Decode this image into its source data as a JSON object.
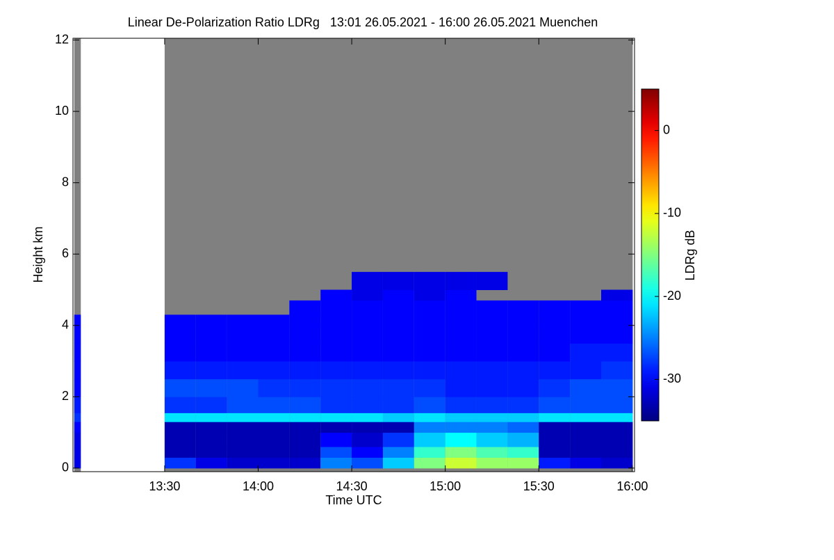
{
  "chart_data": {
    "type": "heatmap",
    "title": "Linear De-Polarization Ratio LDRg   13:01 26.05.2021 - 16:00 26.05.2021 Muenchen",
    "x_label": "Time UTC",
    "y_label": "Height km",
    "colorbar_label": "LDRg dB",
    "xlim": [
      780.6,
      960.7
    ],
    "xticks": [
      {
        "value": 810,
        "label": "13:30"
      },
      {
        "value": 840,
        "label": "14:00"
      },
      {
        "value": 870,
        "label": "14:30"
      },
      {
        "value": 900,
        "label": "15:00"
      },
      {
        "value": 930,
        "label": "15:30"
      },
      {
        "value": 960,
        "label": "16:00"
      }
    ],
    "ylim": [
      -0.1,
      12.05
    ],
    "yticks": [
      0,
      2,
      4,
      6,
      8,
      10,
      12
    ],
    "clim": [
      -35,
      5
    ],
    "cticks": [
      0,
      -10,
      -20,
      -30
    ],
    "colormap": "jet",
    "no_signal_color": "#808080",
    "y_edges": [
      0,
      0.3,
      0.6,
      1.0,
      1.3,
      1.55,
      2.0,
      2.5,
      3.0,
      3.5,
      4.0,
      4.3,
      4.7,
      5.0,
      5.5,
      6.0
    ],
    "columns": [
      {
        "x0": 781,
        "x1": 783,
        "z": [
          -31,
          -31,
          -31,
          -30,
          -28,
          -29,
          -30,
          -30,
          -30,
          -30,
          -30,
          null,
          null,
          null,
          null
        ]
      },
      {
        "x0": 810,
        "x1": 820,
        "z": [
          -28,
          -33,
          -33,
          -33,
          -21,
          -28,
          -27,
          -29,
          -30,
          -30,
          -30,
          null,
          null,
          null,
          null
        ]
      },
      {
        "x0": 820,
        "x1": 830,
        "z": [
          -31,
          -33,
          -33,
          -33,
          -21,
          -28,
          -27,
          -29,
          -30,
          -30,
          -30,
          null,
          null,
          null,
          null
        ]
      },
      {
        "x0": 830,
        "x1": 840,
        "z": [
          -32,
          -33,
          -33,
          -33,
          -21,
          -27,
          -27,
          -29,
          -30,
          -30,
          -30,
          null,
          null,
          null,
          null
        ]
      },
      {
        "x0": 840,
        "x1": 850,
        "z": [
          -32,
          -33,
          -33,
          -33,
          -21,
          -27,
          -28,
          -29,
          -30,
          -30,
          -30,
          null,
          null,
          null,
          null
        ]
      },
      {
        "x0": 850,
        "x1": 860,
        "z": [
          -32,
          -33,
          -33,
          -33,
          -21,
          -27,
          -28,
          -29,
          -30,
          -30,
          -30,
          -30,
          null,
          null,
          null
        ]
      },
      {
        "x0": 860,
        "x1": 870,
        "z": [
          -25,
          -27,
          -30,
          -33,
          -21,
          -28,
          -28,
          -29,
          -30,
          -30,
          -30,
          -30,
          -30,
          null,
          null
        ]
      },
      {
        "x0": 870,
        "x1": 880,
        "z": [
          -27,
          -30,
          -32,
          -33,
          -21,
          -28,
          -28,
          -29,
          -30,
          -30,
          -30,
          -30,
          -31,
          -31,
          null
        ]
      },
      {
        "x0": 880,
        "x1": 890,
        "z": [
          -22,
          -25,
          -28,
          -33,
          -22,
          -28,
          -28,
          -29,
          -30,
          -30,
          -30,
          -30,
          -30,
          -31,
          null
        ]
      },
      {
        "x0": 890,
        "x1": 900,
        "z": [
          -15,
          -18,
          -22,
          -25,
          -21,
          -27,
          -28,
          -29,
          -30,
          -30,
          -30,
          -30,
          -31,
          -31,
          null
        ]
      },
      {
        "x0": 900,
        "x1": 910,
        "z": [
          -12,
          -15,
          -20,
          -25,
          -22,
          -28,
          -29,
          -29,
          -30,
          -30,
          -30,
          -30,
          -30,
          -31,
          null
        ]
      },
      {
        "x0": 910,
        "x1": 920,
        "z": [
          -14,
          -17,
          -22,
          -25,
          -22,
          -28,
          -29,
          -29,
          -30,
          -30,
          -30,
          -30,
          null,
          -31,
          null
        ]
      },
      {
        "x0": 920,
        "x1": 930,
        "z": [
          -14,
          -18,
          -23,
          -26,
          -22,
          -28,
          -29,
          -29,
          -30,
          -30,
          -30,
          -30,
          null,
          null,
          null
        ]
      },
      {
        "x0": 930,
        "x1": 940,
        "z": [
          -29,
          -33,
          -33,
          -33,
          -21,
          -27,
          -28,
          -29,
          -30,
          -30,
          -30,
          -30,
          null,
          null,
          null
        ]
      },
      {
        "x0": 940,
        "x1": 950,
        "z": [
          -31,
          -33,
          -33,
          -33,
          -21,
          -27,
          -27,
          -29,
          -29,
          -30,
          -30,
          -30,
          null,
          null,
          null
        ]
      },
      {
        "x0": 950,
        "x1": 960,
        "z": [
          -32,
          -33,
          -33,
          -33,
          -21,
          -27,
          -27,
          -28,
          -29,
          -30,
          -30,
          -30,
          -31,
          null,
          null
        ]
      }
    ]
  }
}
